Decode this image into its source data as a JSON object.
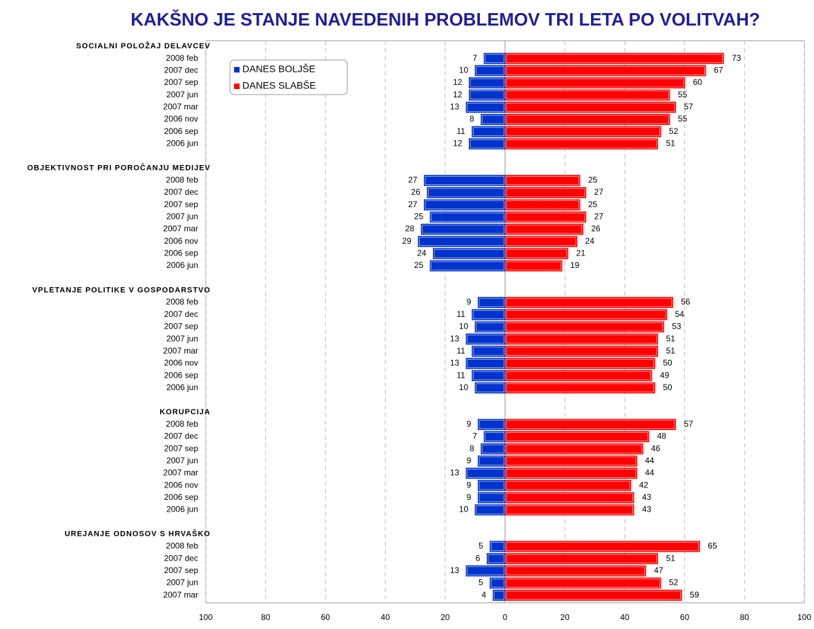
{
  "chart_data": {
    "type": "diverging-bar",
    "title": "KAKŠNO JE STANJE NAVEDENIH PROBLEMOV TRI LETA PO VOLITVAH?",
    "series": [
      {
        "name": "DANES BOLJŠE",
        "color": "#0033cc"
      },
      {
        "name": "DANES SLABŠE",
        "color": "#ff0000"
      }
    ],
    "groups": [
      {
        "label": "SOCIALNI POLOŽAJ DELAVCEV",
        "categories": [
          "2008 feb",
          "2007 dec",
          "2007 sep",
          "2007 jun",
          "2007 mar",
          "2006 nov",
          "2006 sep",
          "2006 jun"
        ],
        "values": [
          [
            7,
            10,
            12,
            12,
            13,
            8,
            11,
            12
          ],
          [
            73,
            67,
            60,
            55,
            57,
            55,
            52,
            51
          ]
        ]
      },
      {
        "label": "OBJEKTIVNOST PRI POROČANJU MEDIJEV",
        "categories": [
          "2008 feb",
          "2007 dec",
          "2007 sep",
          "2007 jun",
          "2007 mar",
          "2006 nov",
          "2006 sep",
          "2006 jun"
        ],
        "values": [
          [
            27,
            26,
            27,
            25,
            28,
            29,
            24,
            25
          ],
          [
            25,
            27,
            25,
            27,
            26,
            24,
            21,
            19
          ]
        ]
      },
      {
        "label": "VPLETANJE POLITIKE V GOSPODARSTVO",
        "categories": [
          "2008 feb",
          "2007 dec",
          "2007 sep",
          "2007 jun",
          "2007 mar",
          "2006 nov",
          "2006 sep",
          "2006 jun"
        ],
        "values": [
          [
            9,
            11,
            10,
            13,
            11,
            13,
            11,
            10
          ],
          [
            56,
            54,
            53,
            51,
            51,
            50,
            49,
            50
          ]
        ]
      },
      {
        "label": "KORUPCIJA",
        "categories": [
          "2008 feb",
          "2007 dec",
          "2007 sep",
          "2007 jun",
          "2007 mar",
          "2006 nov",
          "2006 sep",
          "2006 jun"
        ],
        "values": [
          [
            9,
            7,
            8,
            9,
            13,
            9,
            9,
            10
          ],
          [
            57,
            48,
            46,
            44,
            44,
            42,
            43,
            43
          ]
        ]
      },
      {
        "label": "UREJANJE ODNOSOV S HRVAŠKO",
        "categories": [
          "2008 feb",
          "2007 dec",
          "2007 sep",
          "2007 jun",
          "2007 mar"
        ],
        "values": [
          [
            5,
            6,
            13,
            5,
            4
          ],
          [
            65,
            51,
            47,
            52,
            59
          ]
        ]
      }
    ],
    "xlim": [
      -100,
      100
    ],
    "xticks": [
      {
        "value": -100,
        "label": "100"
      },
      {
        "value": -80,
        "label": "80"
      },
      {
        "value": -60,
        "label": "60"
      },
      {
        "value": -40,
        "label": "40"
      },
      {
        "value": -20,
        "label": "20"
      },
      0,
      20,
      40,
      60,
      80,
      100
    ],
    "grid": true
  }
}
